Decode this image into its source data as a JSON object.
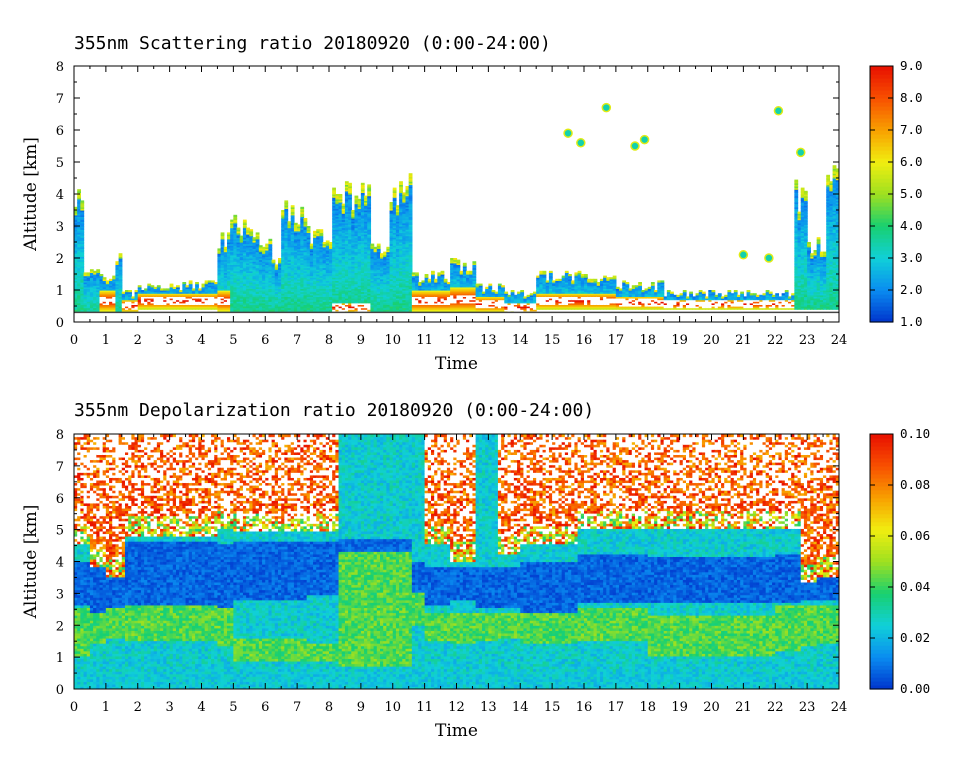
{
  "chart_data": [
    {
      "type": "heatmap",
      "title": "355nm Scattering ratio  20180920 (0:00-24:00)",
      "xlabel": "Time",
      "ylabel": "Altitude [km]",
      "xlim": [
        0,
        24
      ],
      "ylim": [
        0,
        8
      ],
      "x_ticks": [
        "0",
        "1",
        "2",
        "3",
        "4",
        "5",
        "6",
        "7",
        "8",
        "9",
        "10",
        "11",
        "12",
        "13",
        "14",
        "15",
        "16",
        "17",
        "18",
        "19",
        "20",
        "21",
        "22",
        "23",
        "24"
      ],
      "y_ticks": [
        "0",
        "1",
        "2",
        "3",
        "4",
        "5",
        "6",
        "7",
        "8"
      ],
      "colorbar": {
        "range": [
          1.0,
          9.0
        ],
        "labels": [
          "1.0",
          "2.0",
          "3.0",
          "4.0",
          "5.0",
          "6.0",
          "7.0",
          "8.0",
          "9.0"
        ],
        "colors": [
          "#0033cc",
          "#0a8cf0",
          "#10d0d8",
          "#18d070",
          "#9ee020",
          "#f0ee10",
          "#f8a000",
          "#f85000",
          "#e81000"
        ]
      },
      "columns": [
        {
          "t0": 0.0,
          "t1": 0.3,
          "top": 4.6,
          "base": 0.3,
          "mid": 1.6
        },
        {
          "t0": 0.3,
          "t1": 0.8,
          "top": 1.8,
          "base": 0.3,
          "mid": 1.2
        },
        {
          "t0": 0.8,
          "t1": 1.3,
          "top": 1.5,
          "base": 0.3,
          "mid": 1.0
        },
        {
          "t0": 1.3,
          "t1": 1.5,
          "top": 2.4,
          "base": 0.3,
          "mid": 1.3
        },
        {
          "t0": 1.5,
          "t1": 2.0,
          "top": 1.0,
          "base": 0.3,
          "mid": 0.7
        },
        {
          "t0": 2.0,
          "t1": 4.5,
          "top": 1.3,
          "base": 0.4,
          "mid": 0.9
        },
        {
          "t0": 4.5,
          "t1": 4.9,
          "top": 2.8,
          "base": 0.3,
          "mid": 1.0
        },
        {
          "t0": 4.9,
          "t1": 5.5,
          "top": 3.5,
          "base": 0.3,
          "mid": 1.5
        },
        {
          "t0": 5.5,
          "t1": 6.2,
          "top": 3.0,
          "base": 0.3,
          "mid": 1.5
        },
        {
          "t0": 6.2,
          "t1": 6.5,
          "top": 2.2,
          "base": 0.3,
          "mid": 1.4
        },
        {
          "t0": 6.5,
          "t1": 7.3,
          "top": 4.0,
          "base": 0.3,
          "mid": 1.6
        },
        {
          "t0": 7.3,
          "t1": 8.1,
          "top": 3.2,
          "base": 0.3,
          "mid": 1.6
        },
        {
          "t0": 8.1,
          "t1": 9.3,
          "top": 4.5,
          "base": 0.3,
          "mid": 0.6
        },
        {
          "t0": 9.3,
          "t1": 9.9,
          "top": 2.6,
          "base": 0.3,
          "mid": 1.6
        },
        {
          "t0": 9.9,
          "t1": 10.6,
          "top": 4.8,
          "base": 0.3,
          "mid": 1.5
        },
        {
          "t0": 10.6,
          "t1": 11.0,
          "top": 1.6,
          "base": 0.3,
          "mid": 1.0
        },
        {
          "t0": 11.0,
          "t1": 11.8,
          "top": 1.6,
          "base": 0.3,
          "mid": 1.0
        },
        {
          "t0": 11.8,
          "t1": 12.6,
          "top": 2.0,
          "base": 0.3,
          "mid": 1.1
        },
        {
          "t0": 12.6,
          "t1": 13.5,
          "top": 1.2,
          "base": 0.3,
          "mid": 0.8
        },
        {
          "t0": 13.5,
          "t1": 14.5,
          "top": 1.0,
          "base": 0.3,
          "mid": 0.6
        },
        {
          "t0": 14.5,
          "t1": 15.8,
          "top": 1.6,
          "base": 0.4,
          "mid": 0.9
        },
        {
          "t0": 15.8,
          "t1": 17.0,
          "top": 1.6,
          "base": 0.4,
          "mid": 0.9
        },
        {
          "t0": 17.0,
          "t1": 18.5,
          "top": 1.3,
          "base": 0.4,
          "mid": 0.8
        },
        {
          "t0": 18.5,
          "t1": 22.6,
          "top": 1.0,
          "base": 0.4,
          "mid": 0.7
        },
        {
          "t0": 22.6,
          "t1": 23.0,
          "top": 4.5,
          "base": 0.4,
          "mid": 1.4
        },
        {
          "t0": 23.0,
          "t1": 23.6,
          "top": 2.8,
          "base": 0.4,
          "mid": 1.5
        },
        {
          "t0": 23.6,
          "t1": 24.0,
          "top": 5.0,
          "base": 0.4,
          "mid": 1.6
        }
      ],
      "patches": [
        {
          "t": 15.5,
          "alt": 5.9
        },
        {
          "t": 15.9,
          "alt": 5.6
        },
        {
          "t": 16.7,
          "alt": 6.7
        },
        {
          "t": 17.6,
          "alt": 5.5
        },
        {
          "t": 17.9,
          "alt": 5.7
        },
        {
          "t": 22.1,
          "alt": 6.6
        },
        {
          "t": 22.8,
          "alt": 5.3
        },
        {
          "t": 21.0,
          "alt": 2.1
        },
        {
          "t": 21.8,
          "alt": 2.0
        }
      ]
    },
    {
      "type": "heatmap",
      "title": "355nm Depolarization ratio  20180920 (0:00-24:00)",
      "xlabel": "Time",
      "ylabel": "Altitude [km]",
      "xlim": [
        0,
        24
      ],
      "ylim": [
        0,
        8
      ],
      "x_ticks": [
        "0",
        "1",
        "2",
        "3",
        "4",
        "5",
        "6",
        "7",
        "8",
        "9",
        "10",
        "11",
        "12",
        "13",
        "14",
        "15",
        "16",
        "17",
        "18",
        "19",
        "20",
        "21",
        "22",
        "23",
        "24"
      ],
      "y_ticks": [
        "0",
        "1",
        "2",
        "3",
        "4",
        "5",
        "6",
        "7",
        "8"
      ],
      "colorbar": {
        "range": [
          0.0,
          0.1
        ],
        "labels": [
          "0.00",
          "0.02",
          "0.04",
          "0.06",
          "0.08",
          "0.10"
        ],
        "colors": [
          "#0033cc",
          "#0a8cf0",
          "#10d0d8",
          "#18d070",
          "#9ee020",
          "#f0ee10",
          "#f8a000",
          "#f85000",
          "#e81000"
        ]
      },
      "columns": [
        {
          "t0": 0.0,
          "t1": 0.5,
          "noise_base": 4.5,
          "blue_lo": 2.6,
          "blue_hi": 4.0,
          "green_lo": 1.0,
          "green_hi": 2.5
        },
        {
          "t0": 0.5,
          "t1": 1.0,
          "noise_base": 3.8,
          "blue_lo": 2.4,
          "blue_hi": 3.8,
          "green_lo": 1.4,
          "green_hi": 2.4
        },
        {
          "t0": 1.0,
          "t1": 1.6,
          "noise_base": 3.5,
          "blue_lo": 2.5,
          "blue_hi": 3.8,
          "green_lo": 1.6,
          "green_hi": 2.5
        },
        {
          "t0": 1.6,
          "t1": 4.5,
          "noise_base": 4.8,
          "blue_lo": 2.6,
          "blue_hi": 4.6,
          "green_lo": 1.5,
          "green_hi": 2.6
        },
        {
          "t0": 4.5,
          "t1": 5.0,
          "noise_base": 5.0,
          "blue_lo": 2.5,
          "blue_hi": 4.5,
          "green_lo": 1.3,
          "green_hi": 2.5
        },
        {
          "t0": 5.0,
          "t1": 7.3,
          "noise_base": 4.9,
          "blue_lo": 2.8,
          "blue_hi": 4.6,
          "green_lo": 0.8,
          "green_hi": 1.6
        },
        {
          "t0": 7.3,
          "t1": 8.3,
          "noise_base": 4.9,
          "blue_lo": 2.9,
          "blue_hi": 4.6,
          "green_lo": 0.8,
          "green_hi": 1.4
        },
        {
          "t0": 8.3,
          "t1": 10.6,
          "noise_base": 8.0,
          "blue_lo": 4.3,
          "blue_hi": 4.7,
          "green_lo": 0.7,
          "green_hi": 4.3
        },
        {
          "t0": 10.6,
          "t1": 11.0,
          "noise_base": 8.0,
          "blue_lo": 3.0,
          "blue_hi": 4.0,
          "green_lo": 2.0,
          "green_hi": 3.0
        },
        {
          "t0": 11.0,
          "t1": 11.8,
          "noise_base": 4.5,
          "blue_lo": 2.6,
          "blue_hi": 3.8,
          "green_lo": 1.5,
          "green_hi": 2.4
        },
        {
          "t0": 11.8,
          "t1": 12.6,
          "noise_base": 4.0,
          "blue_lo": 2.8,
          "blue_hi": 3.8,
          "green_lo": 1.4,
          "green_hi": 2.4
        },
        {
          "t0": 12.6,
          "t1": 13.3,
          "noise_base": 8.0,
          "blue_lo": 2.5,
          "blue_hi": 3.8,
          "green_lo": 1.5,
          "green_hi": 2.4
        },
        {
          "t0": 13.3,
          "t1": 14.0,
          "noise_base": 4.2,
          "blue_lo": 2.5,
          "blue_hi": 3.8,
          "green_lo": 1.6,
          "green_hi": 2.4
        },
        {
          "t0": 14.0,
          "t1": 15.8,
          "noise_base": 4.5,
          "blue_lo": 2.4,
          "blue_hi": 4.0,
          "green_lo": 1.4,
          "green_hi": 2.5
        },
        {
          "t0": 15.8,
          "t1": 18.0,
          "noise_base": 5.0,
          "blue_lo": 2.7,
          "blue_hi": 4.2,
          "green_lo": 1.5,
          "green_hi": 2.5
        },
        {
          "t0": 18.0,
          "t1": 22.0,
          "noise_base": 5.0,
          "blue_lo": 2.7,
          "blue_hi": 4.1,
          "green_lo": 1.0,
          "green_hi": 2.3
        },
        {
          "t0": 22.0,
          "t1": 22.8,
          "noise_base": 5.0,
          "blue_lo": 2.7,
          "blue_hi": 4.2,
          "green_lo": 1.2,
          "green_hi": 2.6
        },
        {
          "t0": 22.8,
          "t1": 23.3,
          "noise_base": 3.3,
          "blue_lo": 2.8,
          "blue_hi": 3.3,
          "green_lo": 1.3,
          "green_hi": 2.6
        },
        {
          "t0": 23.3,
          "t1": 24.0,
          "noise_base": 3.5,
          "blue_lo": 2.8,
          "blue_hi": 3.6,
          "green_lo": 1.4,
          "green_hi": 2.6
        }
      ]
    }
  ]
}
